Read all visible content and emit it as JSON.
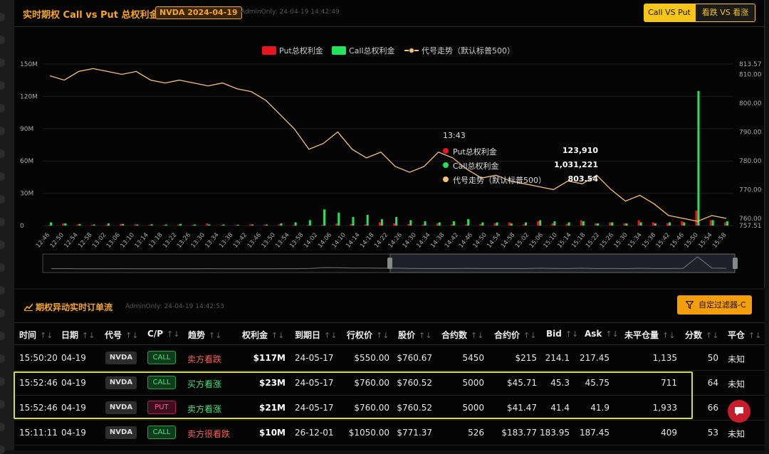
{
  "header": {
    "title": "实时期权 Call vs Put 总权利金",
    "symbol_badge": "NVDA 2024-04-19",
    "admin_stamp": "AdminOnly: 24-04-19 14:42:49",
    "toggle": [
      "Call VS Put",
      "看跌 VS 看涨"
    ]
  },
  "legend": {
    "put": "Put总权利金",
    "call": "Call总权利金",
    "line": "代号走势（默认标普500）"
  },
  "colors": {
    "put": "#e8141e",
    "call": "#22e35a",
    "line": "#f5c07a",
    "accent": "#f5a623",
    "highlight": "#d4e03a"
  },
  "chart_data": {
    "type": "bar",
    "y_left": {
      "ticks": [
        "150M",
        "120M",
        "90M",
        "60M",
        "30M",
        "0"
      ],
      "range": [
        0,
        150000000
      ]
    },
    "y_right": {
      "ticks": [
        "813.57",
        "810.00",
        "800.00",
        "790.00",
        "780.00",
        "770.00",
        "760.00",
        "757.51"
      ],
      "range": [
        757.51,
        813.57
      ]
    },
    "x_ticks": [
      "12:46",
      "12:50",
      "12:54",
      "12:58",
      "13:02",
      "13:06",
      "13:10",
      "13:14",
      "13:18",
      "13:22",
      "13:26",
      "13:30",
      "13:34",
      "13:38",
      "13:42",
      "13:46",
      "13:50",
      "13:54",
      "13:58",
      "14:02",
      "14:06",
      "14:10",
      "14:14",
      "14:18",
      "14:22",
      "14:26",
      "14:30",
      "14:34",
      "14:38",
      "14:42",
      "14:46",
      "14:50",
      "14:54",
      "14:58",
      "15:02",
      "15:06",
      "15:10",
      "15:14",
      "15:18",
      "15:22",
      "15:26",
      "15:30",
      "15:34",
      "15:38",
      "15:42",
      "15:46",
      "15:50",
      "15:54",
      "15:58"
    ],
    "series": [
      {
        "name": "Put总权利金",
        "values": [
          0.5,
          2,
          1,
          0.8,
          0.6,
          1.5,
          1,
          0.7,
          0.6,
          1,
          0.8,
          2,
          0.6,
          0.5,
          1,
          0.8,
          1,
          0.6,
          0.5,
          0.8,
          2,
          1.5,
          1,
          3,
          2,
          1.5,
          1,
          2,
          1.2,
          1,
          1.5,
          2,
          3,
          1,
          4,
          2,
          1.5,
          5,
          2,
          3,
          2,
          5,
          3,
          2,
          4,
          14,
          5,
          3
        ]
      },
      {
        "name": "Call总权利金",
        "values": [
          3,
          2,
          1.5,
          1,
          2,
          1.5,
          1,
          1.2,
          1,
          1.5,
          1,
          1,
          1,
          0.8,
          1,
          1,
          2,
          3,
          5,
          15,
          12,
          8,
          10,
          6,
          8,
          5,
          4,
          3,
          4,
          6,
          3,
          3,
          2,
          3,
          5,
          4,
          3,
          4,
          2,
          3,
          2,
          3,
          2,
          3,
          3,
          125,
          5,
          4
        ]
      },
      {
        "name": "代号走势（默认标普500）",
        "values": [
          809.5,
          808,
          811,
          812,
          811,
          810,
          811,
          808,
          807,
          808,
          807,
          806,
          807,
          805,
          804,
          801,
          796,
          791,
          784,
          786,
          790,
          784,
          781,
          783,
          778,
          776,
          778,
          783,
          781,
          777,
          774,
          775,
          773,
          772,
          771,
          770,
          773,
          772,
          775,
          770,
          766,
          768,
          765,
          761,
          760,
          759,
          761,
          760
        ]
      }
    ],
    "tooltip": {
      "time": "13:43",
      "rows": [
        {
          "name": "Put总权利金",
          "value": "123,910"
        },
        {
          "name": "Call总权利金",
          "value": "1,031,221"
        },
        {
          "name": "代号走势（默认标普500）",
          "value": "803.54"
        }
      ]
    }
  },
  "flow": {
    "title": "期权异动实时订单流",
    "admin_stamp": "AdminOnly: 24-04-19 14:42:53",
    "filter_label": "自定过滤器-C",
    "columns": [
      "时间",
      "日期",
      "代号",
      "C/P",
      "趋势",
      "权利金",
      "到期日",
      "行权价",
      "股价",
      "合约数",
      "合约价",
      "Bid",
      "Ask",
      "未平仓量",
      "分数",
      "平仓"
    ],
    "rows": [
      {
        "time": "15:50:20",
        "date": "04-19",
        "ticker": "NVDA",
        "cp": "CALL",
        "trend": "卖方看跌",
        "premium": "$117M",
        "expiry": "24-05-17",
        "strike": "$550.00",
        "price": "$760.67",
        "contracts": "5450",
        "contract_price": "$215",
        "bid": "214.1",
        "ask": "217.45",
        "oi": "1,135",
        "score": "50",
        "close": "未知"
      },
      {
        "time": "15:52:46",
        "date": "04-19",
        "ticker": "NVDA",
        "cp": "CALL",
        "trend": "买方看涨",
        "premium": "$23M",
        "expiry": "24-05-17",
        "strike": "$760.00",
        "price": "$760.52",
        "contracts": "5000",
        "contract_price": "$45.71",
        "bid": "45.3",
        "ask": "45.75",
        "oi": "711",
        "score": "64",
        "close": "未知"
      },
      {
        "time": "15:52:46",
        "date": "04-19",
        "ticker": "NVDA",
        "cp": "PUT",
        "trend": "卖方看涨",
        "premium": "$21M",
        "expiry": "24-05-17",
        "strike": "$760.00",
        "price": "$760.52",
        "contracts": "5000",
        "contract_price": "$41.47",
        "bid": "41.4",
        "ask": "41.9",
        "oi": "1,933",
        "score": "66",
        "close": ""
      },
      {
        "time": "15:11:11",
        "date": "04-19",
        "ticker": "NVDA",
        "cp": "CALL",
        "trend": "卖方很看跌",
        "premium": "$10M",
        "expiry": "26-12-01",
        "strike": "$1050.00",
        "price": "$771.37",
        "contracts": "526",
        "contract_price": "$183.77",
        "bid": "183.95",
        "ask": "187.45",
        "oi": "409",
        "score": "53",
        "close": "未知"
      }
    ]
  }
}
